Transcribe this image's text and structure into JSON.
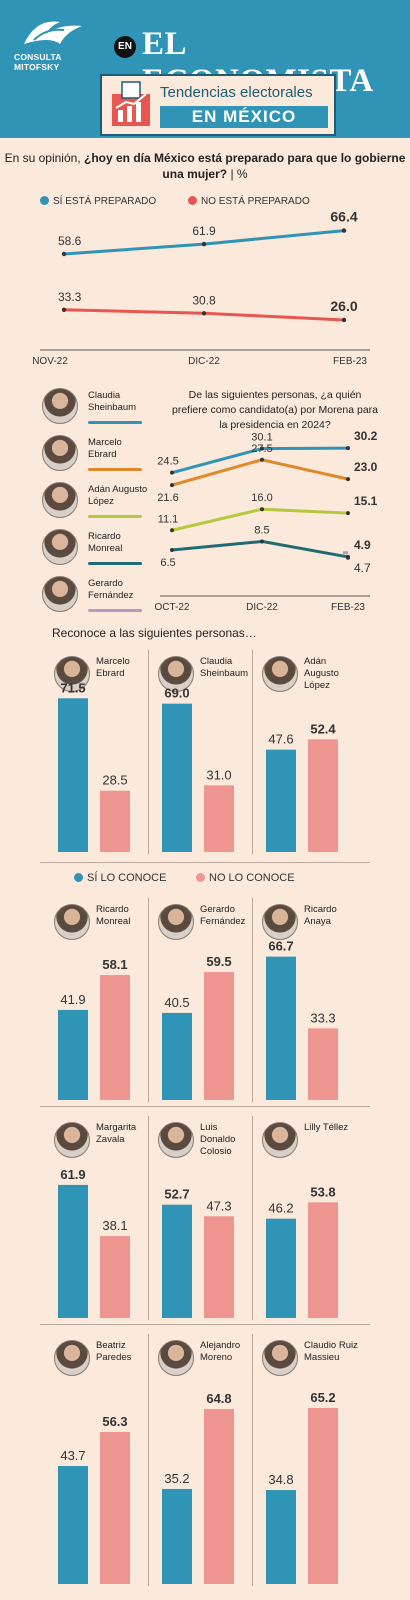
{
  "header": {
    "logo_text": "CONSULTA MITOFSKY",
    "en_badge": "EN",
    "masthead": "EL ECONOMISTA",
    "banner_line1": "Tendencias electorales",
    "banner_line2": "EN MÉXICO"
  },
  "colors": {
    "blue": "#2f94b5",
    "red": "#e8574f",
    "pink": "#ef9590",
    "orange": "#de8a2c",
    "green": "#b5c93e",
    "teal": "#1e6b73",
    "purple": "#b89ac4"
  },
  "q1": {
    "question_prefix": "En su opinión, ",
    "question_bold": "¿hoy en día México está preparado para que lo gobierne una mujer?",
    "question_suffix": " | %",
    "legend_yes": "SÍ ESTÁ PREPARADO",
    "legend_no": "NO ESTÁ PREPARADO"
  },
  "q2": {
    "question": "De las siguientes personas, ¿a quién prefiere como candidato(a) por Morena para la presidencia en 2024?",
    "candidates": [
      {
        "name": "Claudia Sheinbaum"
      },
      {
        "name": "Marcelo Ebrard"
      },
      {
        "name": "Adán Augusto López"
      },
      {
        "name": "Ricardo Monreal"
      },
      {
        "name": "Gerardo Fernández"
      }
    ]
  },
  "recognition": {
    "title": "Reconoce a las siguientes personas…",
    "legend_yes": "SÍ LO CONOCE",
    "legend_no": "NO LO CONOCE"
  },
  "chart_data": [
    {
      "type": "line",
      "title": "",
      "x": [
        "NOV-22",
        "DIC-22",
        "FEB-23"
      ],
      "series": [
        {
          "name": "SÍ ESTÁ PREPARADO",
          "values": [
            58.6,
            61.9,
            66.4
          ]
        },
        {
          "name": "NO ESTÁ PREPARADO",
          "values": [
            33.3,
            30.8,
            26.0
          ]
        }
      ]
    },
    {
      "type": "line",
      "x": [
        "OCT-22",
        "DIC-22",
        "FEB-23"
      ],
      "series": [
        {
          "name": "Claudia Sheinbaum",
          "values": [
            24.5,
            30.1,
            30.2
          ]
        },
        {
          "name": "Marcelo Ebrard",
          "values": [
            21.6,
            27.5,
            23.0
          ]
        },
        {
          "name": "Adán Augusto López",
          "values": [
            11.1,
            16.0,
            15.1
          ]
        },
        {
          "name": "Ricardo Monreal",
          "values": [
            6.5,
            8.5,
            4.9
          ]
        },
        {
          "name": "Gerardo Fernández",
          "values": [
            null,
            null,
            4.7
          ]
        }
      ]
    },
    {
      "type": "bar",
      "categories": [
        "Marcelo Ebrard",
        "Claudia Sheinbaum",
        "Adán Augusto López",
        "Ricardo Monreal",
        "Gerardo Fernández",
        "Ricardo Anaya",
        "Margarita Zavala",
        "Luis Donaldo Colosio",
        "Lilly Téllez",
        "Beatriz Paredes",
        "Alejandro Moreno",
        "Claudio Ruiz Massieu"
      ],
      "series": [
        {
          "name": "SÍ LO CONOCE",
          "values": [
            71.5,
            69.0,
            47.6,
            41.9,
            40.5,
            66.7,
            61.9,
            52.7,
            46.2,
            43.7,
            35.2,
            34.8
          ]
        },
        {
          "name": "NO LO CONOCE",
          "values": [
            28.5,
            31.0,
            52.4,
            58.1,
            59.5,
            33.3,
            38.1,
            47.3,
            53.8,
            56.3,
            64.8,
            65.2
          ]
        }
      ]
    }
  ]
}
